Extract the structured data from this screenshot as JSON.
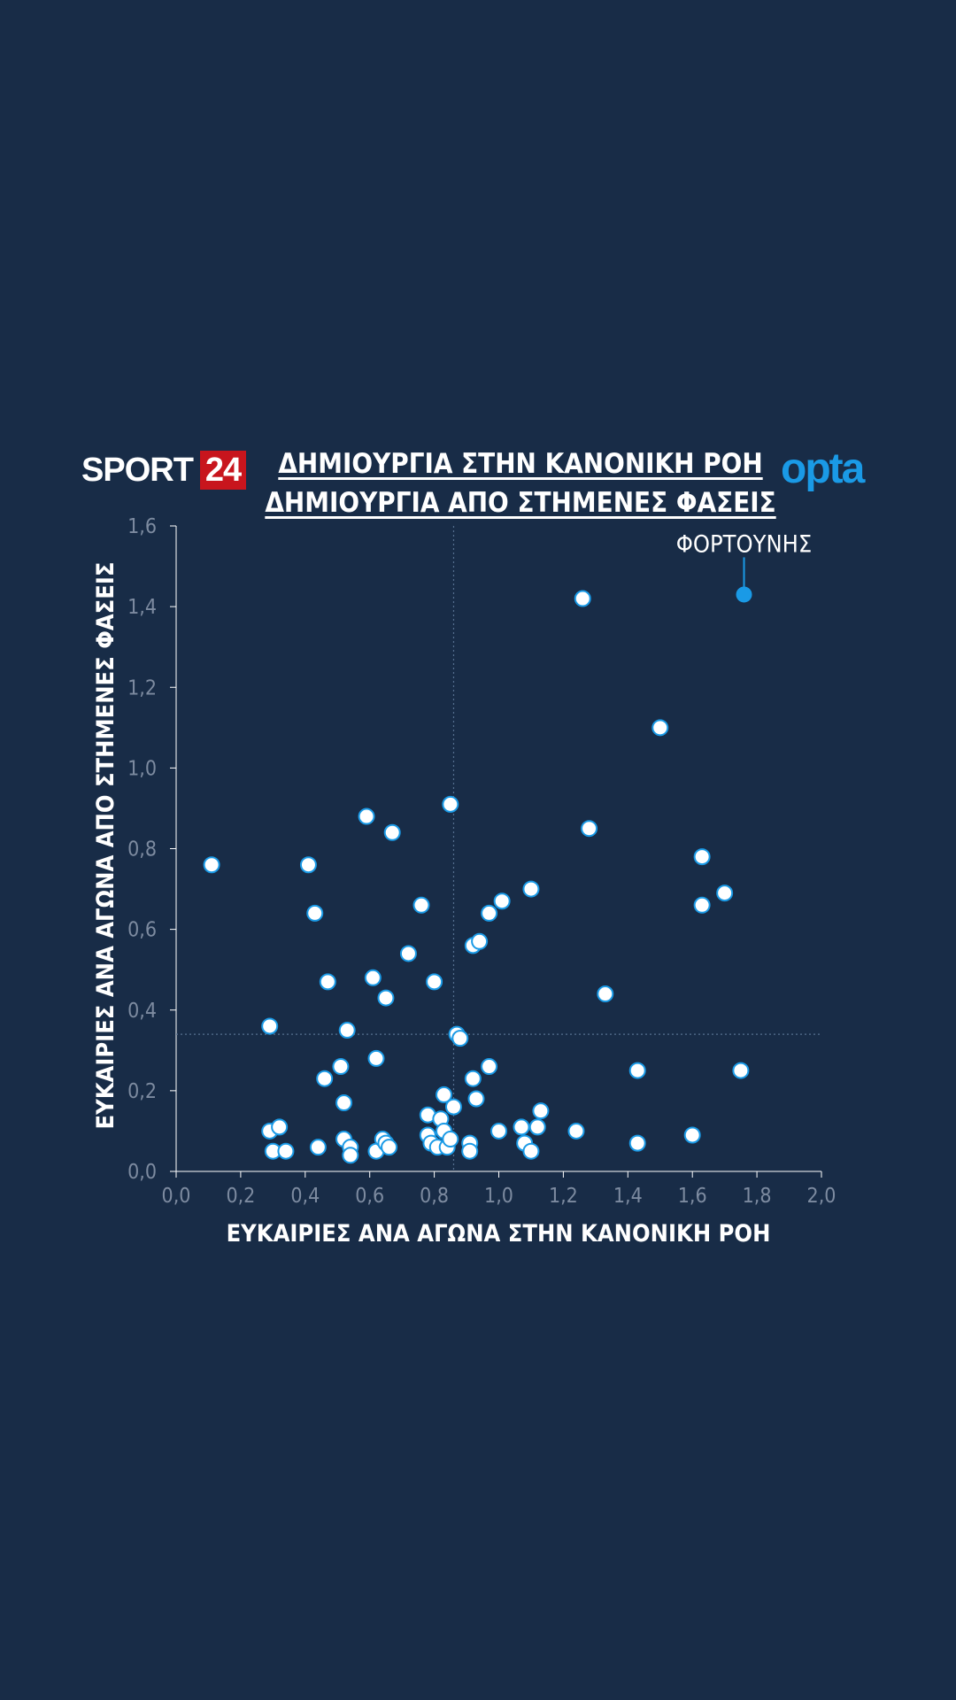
{
  "brand": {
    "sport": "SPORT",
    "number": "24",
    "opta": "opta",
    "red": "#c8151d",
    "opta_blue": "#1a9ae6"
  },
  "colors": {
    "background": "#182c47",
    "point_fill": "#ffffff",
    "point_stroke": "#1a9ae6",
    "highlight": "#1a9ae6",
    "axis_text": "#7d8ba0",
    "axis_line": "#ffffff",
    "reference_line": "#55708f"
  },
  "chart_data": {
    "type": "scatter",
    "title": "ΔΗΜΙΟΥΡΓΙΑ ΣΤΗΝ ΚΑΝΟΝΙΚΗ ΡΟΗ",
    "subtitle": "ΔΗΜΙΟΥΡΓΙΑ ΑΠΟ ΣΤΗΜΕΝΕΣ ΦΑΣΕΙΣ",
    "xlabel": "ΕΥΚΑΙΡΙΕΣ ΑΝΑ ΑΓΩΝΑ ΣΤΗΝ ΚΑΝΟΝΙΚΗ ΡΟΗ",
    "ylabel": "ΕΥΚΑΙΡΙΕΣ ΑΝΑ ΑΓΩΝΑ ΑΠΟ ΣΤΗΜΕΝΕΣ ΦΑΣΕΙΣ",
    "xlim": [
      0,
      2.0
    ],
    "ylim": [
      0,
      1.6
    ],
    "x_ticks": [
      0,
      0.2,
      0.4,
      0.6,
      0.8,
      1.0,
      1.2,
      1.4,
      1.6,
      1.8,
      2.0
    ],
    "y_ticks": [
      0,
      0.2,
      0.4,
      0.6,
      0.8,
      1.0,
      1.2,
      1.4,
      1.6
    ],
    "x_tick_labels": [
      "0,0",
      "0,2",
      "0,4",
      "0,6",
      "0,8",
      "1,0",
      "1,2",
      "1,4",
      "1,6",
      "1,8",
      "2,0"
    ],
    "y_tick_labels": [
      "0,0",
      "0,2",
      "0,4",
      "0,6",
      "0,8",
      "1,0",
      "1,2",
      "1,4",
      "1,6"
    ],
    "grid": false,
    "reference_lines": {
      "x": 0.86,
      "y": 0.34
    },
    "highlight": {
      "label": "ΦΟΡΤΟΥΝΗΣ",
      "x": 1.76,
      "y": 1.43
    },
    "points": [
      [
        0.11,
        0.76
      ],
      [
        0.29,
        0.36
      ],
      [
        0.29,
        0.1
      ],
      [
        0.3,
        0.05
      ],
      [
        0.32,
        0.11
      ],
      [
        0.34,
        0.05
      ],
      [
        0.41,
        0.76
      ],
      [
        0.43,
        0.64
      ],
      [
        0.44,
        0.06
      ],
      [
        0.46,
        0.23
      ],
      [
        0.47,
        0.47
      ],
      [
        0.51,
        0.26
      ],
      [
        0.52,
        0.17
      ],
      [
        0.52,
        0.08
      ],
      [
        0.53,
        0.35
      ],
      [
        0.54,
        0.06
      ],
      [
        0.54,
        0.04
      ],
      [
        0.59,
        0.88
      ],
      [
        0.61,
        0.48
      ],
      [
        0.62,
        0.28
      ],
      [
        0.62,
        0.05
      ],
      [
        0.64,
        0.08
      ],
      [
        0.65,
        0.43
      ],
      [
        0.65,
        0.07
      ],
      [
        0.66,
        0.06
      ],
      [
        0.67,
        0.84
      ],
      [
        0.72,
        0.54
      ],
      [
        0.76,
        0.66
      ],
      [
        0.78,
        0.14
      ],
      [
        0.78,
        0.09
      ],
      [
        0.79,
        0.07
      ],
      [
        0.8,
        0.47
      ],
      [
        0.81,
        0.06
      ],
      [
        0.82,
        0.13
      ],
      [
        0.83,
        0.19
      ],
      [
        0.83,
        0.1
      ],
      [
        0.84,
        0.06
      ],
      [
        0.85,
        0.08
      ],
      [
        0.85,
        0.91
      ],
      [
        0.86,
        0.16
      ],
      [
        0.87,
        0.34
      ],
      [
        0.88,
        0.33
      ],
      [
        0.91,
        0.07
      ],
      [
        0.91,
        0.05
      ],
      [
        0.92,
        0.23
      ],
      [
        0.92,
        0.56
      ],
      [
        0.93,
        0.18
      ],
      [
        0.94,
        0.57
      ],
      [
        0.97,
        0.64
      ],
      [
        0.97,
        0.26
      ],
      [
        1.0,
        0.1
      ],
      [
        1.01,
        0.67
      ],
      [
        1.07,
        0.11
      ],
      [
        1.08,
        0.07
      ],
      [
        1.1,
        0.7
      ],
      [
        1.1,
        0.05
      ],
      [
        1.12,
        0.11
      ],
      [
        1.13,
        0.15
      ],
      [
        1.24,
        0.1
      ],
      [
        1.26,
        1.42
      ],
      [
        1.28,
        0.85
      ],
      [
        1.33,
        0.44
      ],
      [
        1.43,
        0.07
      ],
      [
        1.43,
        0.25
      ],
      [
        1.5,
        1.1
      ],
      [
        1.6,
        0.09
      ],
      [
        1.63,
        0.78
      ],
      [
        1.63,
        0.66
      ],
      [
        1.7,
        0.69
      ],
      [
        1.75,
        0.25
      ]
    ]
  }
}
